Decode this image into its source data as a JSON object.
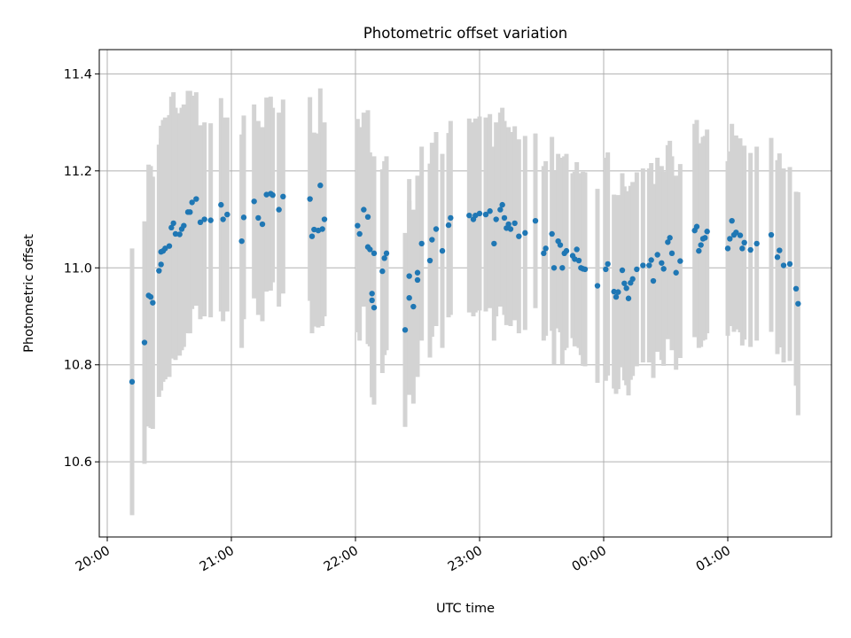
{
  "chart_data": {
    "type": "scatter",
    "title": "Photometric offset variation",
    "xlabel": "UTC time",
    "ylabel": "Photometric offset",
    "x_is_time": true,
    "xlim": [
      "20:00",
      "01:52"
    ],
    "ylim": [
      10.445,
      11.45
    ],
    "x_ticks": [
      "20:00",
      "21:00",
      "22:00",
      "23:00",
      "00:00",
      "01:00"
    ],
    "y_ticks": [
      10.6,
      10.8,
      11.0,
      11.2,
      11.4
    ],
    "grid": true,
    "colors": {
      "marker": "#1f77b4",
      "errorbar": "#d3d3d3",
      "grid": "#b0b0b0",
      "axes": "#000000"
    },
    "series": [
      {
        "name": "",
        "points": [
          [
            "20:12",
            10.765,
            0.275
          ],
          [
            "20:18",
            10.846,
            0.25
          ],
          [
            "20:20",
            10.943,
            0.27
          ],
          [
            "20:21",
            10.94,
            0.27
          ],
          [
            "20:22",
            10.928,
            0.26
          ],
          [
            "20:25",
            10.994,
            0.26
          ],
          [
            "20:26",
            11.007,
            0.26
          ],
          [
            "20:26",
            11.033,
            0.26
          ],
          [
            "20:27",
            11.035,
            0.27
          ],
          [
            "20:28",
            11.04,
            0.27
          ],
          [
            "20:30",
            11.045,
            0.27
          ],
          [
            "20:31",
            11.083,
            0.27
          ],
          [
            "20:32",
            11.092,
            0.27
          ],
          [
            "20:33",
            11.07,
            0.26
          ],
          [
            "20:35",
            11.069,
            0.25
          ],
          [
            "20:36",
            11.08,
            0.25
          ],
          [
            "20:37",
            11.087,
            0.25
          ],
          [
            "20:39",
            11.115,
            0.25
          ],
          [
            "20:40",
            11.115,
            0.25
          ],
          [
            "20:41",
            11.135,
            0.22
          ],
          [
            "20:43",
            11.142,
            0.22
          ],
          [
            "20:45",
            11.094,
            0.2
          ],
          [
            "20:47",
            11.1,
            0.2
          ],
          [
            "20:50",
            11.098,
            0.2
          ],
          [
            "20:55",
            11.13,
            0.22
          ],
          [
            "20:56",
            11.1,
            0.21
          ],
          [
            "20:58",
            11.11,
            0.2
          ],
          [
            "21:05",
            11.055,
            0.22
          ],
          [
            "21:06",
            11.104,
            0.21
          ],
          [
            "21:11",
            11.137,
            0.2
          ],
          [
            "21:13",
            11.103,
            0.2
          ],
          [
            "21:15",
            11.09,
            0.2
          ],
          [
            "21:17",
            11.151,
            0.2
          ],
          [
            "21:19",
            11.153,
            0.2
          ],
          [
            "21:20",
            11.15,
            0.18
          ],
          [
            "21:23",
            11.12,
            0.2
          ],
          [
            "21:25",
            11.147,
            0.2
          ],
          [
            "21:38",
            11.142,
            0.21
          ],
          [
            "21:39",
            11.065,
            0.2
          ],
          [
            "21:40",
            11.079,
            0.2
          ],
          [
            "21:42",
            11.077,
            0.2
          ],
          [
            "21:43",
            11.17,
            0.2
          ],
          [
            "21:44",
            11.08,
            0.2
          ],
          [
            "21:45",
            11.1,
            0.2
          ],
          [
            "22:01",
            11.087,
            0.22
          ],
          [
            "22:02",
            11.07,
            0.22
          ],
          [
            "22:04",
            11.12,
            0.2
          ],
          [
            "22:06",
            11.105,
            0.22
          ],
          [
            "22:06",
            11.043,
            0.2
          ],
          [
            "22:07",
            11.038,
            0.2
          ],
          [
            "22:08",
            10.947,
            0.2
          ],
          [
            "22:08",
            10.933,
            0.2
          ],
          [
            "22:09",
            10.918,
            0.2
          ],
          [
            "22:09",
            11.03,
            0.2
          ],
          [
            "22:13",
            10.993,
            0.21
          ],
          [
            "22:14",
            11.02,
            0.2
          ],
          [
            "22:15",
            11.03,
            0.2
          ],
          [
            "22:24",
            10.872,
            0.2
          ],
          [
            "22:26",
            10.938,
            0.2
          ],
          [
            "22:26",
            10.983,
            0.2
          ],
          [
            "22:28",
            10.92,
            0.2
          ],
          [
            "22:30",
            10.975,
            0.2
          ],
          [
            "22:30",
            10.99,
            0.2
          ],
          [
            "22:32",
            11.05,
            0.2
          ],
          [
            "22:36",
            11.015,
            0.2
          ],
          [
            "22:37",
            11.058,
            0.2
          ],
          [
            "22:39",
            11.08,
            0.2
          ],
          [
            "22:42",
            11.035,
            0.2
          ],
          [
            "22:45",
            11.088,
            0.19
          ],
          [
            "22:46",
            11.103,
            0.2
          ],
          [
            "22:55",
            11.108,
            0.2
          ],
          [
            "22:57",
            11.1,
            0.2
          ],
          [
            "22:58",
            11.108,
            0.2
          ],
          [
            "23:00",
            11.112,
            0.2
          ],
          [
            "23:03",
            11.11,
            0.2
          ],
          [
            "23:05",
            11.117,
            0.2
          ],
          [
            "23:07",
            11.05,
            0.2
          ],
          [
            "23:08",
            11.1,
            0.2
          ],
          [
            "23:10",
            11.12,
            0.2
          ],
          [
            "23:11",
            11.13,
            0.2
          ],
          [
            "23:12",
            11.103,
            0.2
          ],
          [
            "23:13",
            11.082,
            0.2
          ],
          [
            "23:14",
            11.09,
            0.2
          ],
          [
            "23:15",
            11.08,
            0.2
          ],
          [
            "23:17",
            11.092,
            0.2
          ],
          [
            "23:19",
            11.065,
            0.2
          ],
          [
            "23:22",
            11.072,
            0.2
          ],
          [
            "23:27",
            11.097,
            0.18
          ],
          [
            "23:31",
            11.03,
            0.18
          ],
          [
            "23:32",
            11.04,
            0.18
          ],
          [
            "23:35",
            11.07,
            0.2
          ],
          [
            "23:36",
            11.0,
            0.2
          ],
          [
            "23:38",
            11.055,
            0.18
          ],
          [
            "23:39",
            11.047,
            0.18
          ],
          [
            "23:40",
            11.0,
            0.2
          ],
          [
            "23:41",
            11.03,
            0.2
          ],
          [
            "23:42",
            11.035,
            0.2
          ],
          [
            "23:45",
            11.025,
            0.17
          ],
          [
            "23:46",
            11.018,
            0.18
          ],
          [
            "23:47",
            11.038,
            0.18
          ],
          [
            "23:48",
            11.015,
            0.18
          ],
          [
            "23:49",
            11.0,
            0.18
          ],
          [
            "23:50",
            10.998,
            0.2
          ],
          [
            "23:51",
            10.997,
            0.2
          ],
          [
            "23:57",
            10.963,
            0.2
          ],
          [
            "00:01",
            10.997,
            0.23
          ],
          [
            "00:02",
            11.008,
            0.23
          ],
          [
            "00:05",
            10.951,
            0.2
          ],
          [
            "00:06",
            10.94,
            0.2
          ],
          [
            "00:07",
            10.95,
            0.2
          ],
          [
            "00:09",
            10.995,
            0.2
          ],
          [
            "00:10",
            10.968,
            0.2
          ],
          [
            "00:11",
            10.958,
            0.2
          ],
          [
            "00:12",
            10.937,
            0.2
          ],
          [
            "00:13",
            10.969,
            0.2
          ],
          [
            "00:14",
            10.977,
            0.2
          ],
          [
            "00:16",
            10.997,
            0.2
          ],
          [
            "00:19",
            11.005,
            0.2
          ],
          [
            "00:22",
            11.005,
            0.2
          ],
          [
            "00:23",
            11.016,
            0.2
          ],
          [
            "00:24",
            10.973,
            0.2
          ],
          [
            "00:26",
            11.027,
            0.2
          ],
          [
            "00:28",
            11.01,
            0.2
          ],
          [
            "00:29",
            10.998,
            0.2
          ],
          [
            "00:31",
            11.053,
            0.2
          ],
          [
            "00:32",
            11.062,
            0.2
          ],
          [
            "00:33",
            11.03,
            0.2
          ],
          [
            "00:35",
            10.99,
            0.2
          ],
          [
            "00:37",
            11.014,
            0.2
          ],
          [
            "00:44",
            11.077,
            0.22
          ],
          [
            "00:45",
            11.085,
            0.22
          ],
          [
            "00:46",
            11.035,
            0.2
          ],
          [
            "00:47",
            11.047,
            0.21
          ],
          [
            "00:48",
            11.06,
            0.21
          ],
          [
            "00:49",
            11.062,
            0.21
          ],
          [
            "00:50",
            11.075,
            0.21
          ],
          [
            "01:00",
            11.04,
            0.18
          ],
          [
            "01:01",
            11.06,
            0.18
          ],
          [
            "01:02",
            11.097,
            0.2
          ],
          [
            "01:03",
            11.068,
            0.2
          ],
          [
            "01:04",
            11.073,
            0.2
          ],
          [
            "01:06",
            11.067,
            0.2
          ],
          [
            "01:07",
            11.04,
            0.2
          ],
          [
            "01:08",
            11.052,
            0.2
          ],
          [
            "01:11",
            11.037,
            0.2
          ],
          [
            "01:14",
            11.05,
            0.2
          ],
          [
            "01:21",
            11.068,
            0.2
          ],
          [
            "01:24",
            11.022,
            0.2
          ],
          [
            "01:25",
            11.036,
            0.2
          ],
          [
            "01:27",
            11.005,
            0.2
          ],
          [
            "01:30",
            11.008,
            0.2
          ],
          [
            "01:33",
            10.957,
            0.2
          ],
          [
            "01:34",
            10.926,
            0.23
          ]
        ]
      }
    ]
  }
}
